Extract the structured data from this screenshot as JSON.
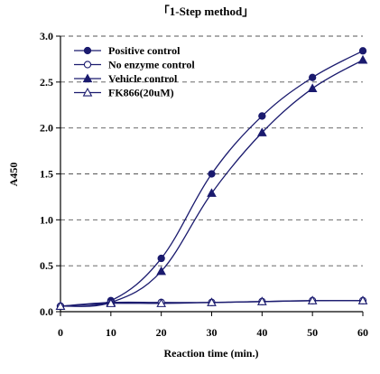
{
  "chart_data": {
    "type": "line",
    "title": "「1-Step method」",
    "xlabel": "Reaction time (min.)",
    "ylabel": "A450",
    "xlim": [
      0,
      60
    ],
    "ylim": [
      0,
      3.0
    ],
    "x_ticks": [
      "0",
      "10",
      "20",
      "30",
      "40",
      "50",
      "60"
    ],
    "y_ticks": [
      "0.0",
      "0.5",
      "1.0",
      "1.5",
      "2.0",
      "2.5",
      "3.0"
    ],
    "grid": "horizontal dashed",
    "legend_position": "top-left",
    "x": [
      0,
      10,
      20,
      30,
      40,
      50,
      60
    ],
    "series": [
      {
        "name": "Positive control",
        "marker": "filled-circle",
        "values": [
          0.06,
          0.12,
          0.58,
          1.5,
          2.13,
          2.55,
          2.84
        ]
      },
      {
        "name": "No enzyme control",
        "marker": "open-circle",
        "values": [
          0.06,
          0.1,
          0.1,
          0.1,
          0.11,
          0.12,
          0.12
        ]
      },
      {
        "name": "Vehicle control",
        "marker": "filled-triangle",
        "values": [
          0.06,
          0.1,
          0.44,
          1.29,
          1.95,
          2.43,
          2.74
        ]
      },
      {
        "name": "FK866(20uM)",
        "marker": "open-triangle",
        "values": [
          0.06,
          0.09,
          0.09,
          0.1,
          0.11,
          0.12,
          0.12
        ]
      }
    ],
    "colors": {
      "line": "#1a1a6e",
      "axis": "#000000",
      "grid": "#555555"
    }
  }
}
